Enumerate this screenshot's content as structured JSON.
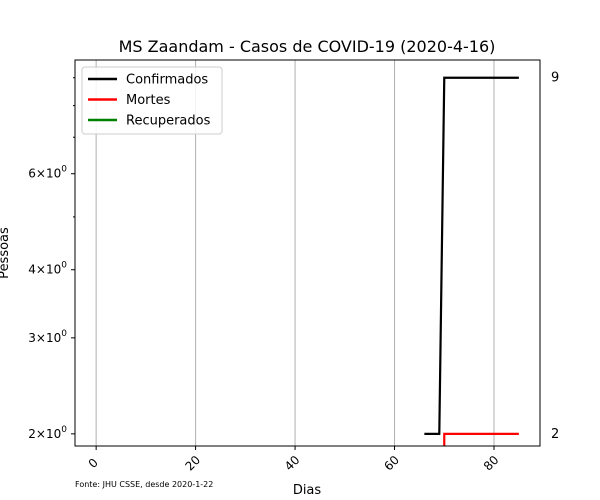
{
  "chart_data": {
    "type": "line",
    "title": "MS Zaandam - Casos de COVID-19 (2020-4-16)",
    "xlabel": "Dias",
    "ylabel": "Pessoas",
    "yscale": "log",
    "xlim": [
      -4.25,
      89.25
    ],
    "ylim": [
      1.9,
      9.7
    ],
    "xticks": [
      0,
      20,
      40,
      60,
      80
    ],
    "xtick_labels": [
      "0",
      "20",
      "40",
      "60",
      "80"
    ],
    "yticks": [
      2,
      3,
      4,
      6
    ],
    "ytick_labels": [
      "2",
      "3",
      "4",
      "6"
    ],
    "ytick_base": "10",
    "ytick_exponent": "0",
    "grid": "vertical",
    "legend_position": "top-left",
    "series": [
      {
        "name": "Confirmados",
        "color": "#000000",
        "points": [
          [
            66,
            2
          ],
          [
            69,
            2
          ],
          [
            70,
            9
          ],
          [
            85,
            9
          ]
        ]
      },
      {
        "name": "Mortes",
        "color": "#ff0000",
        "points": [
          [
            70,
            1
          ],
          [
            70,
            2
          ],
          [
            85,
            2
          ]
        ]
      },
      {
        "name": "Recuperados",
        "color": "#008000",
        "points": []
      }
    ],
    "right_labels": [
      {
        "value": 9,
        "text": "9"
      },
      {
        "value": 2,
        "text": "2"
      }
    ],
    "source_note": "Fonte: JHU CSSE, desde 2020-1-22"
  }
}
